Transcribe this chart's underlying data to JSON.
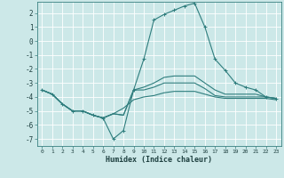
{
  "xlabel": "Humidex (Indice chaleur)",
  "bg_color": "#cce8e8",
  "grid_color": "#ffffff",
  "line_color": "#2e7d7d",
  "xlim": [
    -0.5,
    23.5
  ],
  "ylim": [
    -7.5,
    2.8
  ],
  "yticks": [
    -7,
    -6,
    -5,
    -4,
    -3,
    -2,
    -1,
    0,
    1,
    2
  ],
  "xticks": [
    0,
    1,
    2,
    3,
    4,
    5,
    6,
    7,
    8,
    9,
    10,
    11,
    12,
    13,
    14,
    15,
    16,
    17,
    18,
    19,
    20,
    21,
    22,
    23
  ],
  "line1_x": [
    0,
    1,
    2,
    3,
    4,
    5,
    6,
    7,
    8,
    9,
    10,
    11,
    12,
    13,
    14,
    15,
    16,
    17,
    18,
    19,
    20,
    21,
    22,
    23
  ],
  "line1_y": [
    -3.5,
    -3.8,
    -4.5,
    -5.0,
    -5.0,
    -5.3,
    -5.5,
    -7.0,
    -6.4,
    -3.5,
    -1.3,
    1.5,
    1.9,
    2.2,
    2.5,
    2.7,
    1.0,
    -1.3,
    -2.1,
    -3.0,
    -3.3,
    -3.5,
    -4.0,
    -4.1
  ],
  "line2_x": [
    0,
    1,
    2,
    3,
    4,
    5,
    6,
    7,
    8,
    9,
    10,
    11,
    12,
    13,
    14,
    15,
    16,
    17,
    18,
    19,
    20,
    21,
    22,
    23
  ],
  "line2_y": [
    -3.5,
    -3.8,
    -4.5,
    -5.0,
    -5.0,
    -5.3,
    -5.5,
    -5.2,
    -5.3,
    -3.5,
    -3.3,
    -3.0,
    -2.6,
    -2.5,
    -2.5,
    -2.5,
    -3.0,
    -3.5,
    -3.8,
    -3.8,
    -3.8,
    -3.8,
    -4.0,
    -4.1
  ],
  "line3_x": [
    0,
    1,
    2,
    3,
    4,
    5,
    6,
    7,
    8,
    9,
    10,
    11,
    12,
    13,
    14,
    15,
    16,
    17,
    18,
    19,
    20,
    21,
    22,
    23
  ],
  "line3_y": [
    -3.5,
    -3.8,
    -4.5,
    -5.0,
    -5.0,
    -5.3,
    -5.5,
    -5.2,
    -5.3,
    -3.5,
    -3.5,
    -3.3,
    -3.0,
    -3.0,
    -3.0,
    -3.0,
    -3.4,
    -3.9,
    -4.0,
    -4.0,
    -4.0,
    -4.0,
    -4.0,
    -4.1
  ],
  "line4_x": [
    0,
    1,
    2,
    3,
    4,
    5,
    6,
    7,
    8,
    9,
    10,
    11,
    12,
    13,
    14,
    15,
    16,
    17,
    18,
    19,
    20,
    21,
    22,
    23
  ],
  "line4_y": [
    -3.5,
    -3.8,
    -4.5,
    -5.0,
    -5.0,
    -5.3,
    -5.5,
    -5.2,
    -4.8,
    -4.2,
    -4.0,
    -3.9,
    -3.7,
    -3.6,
    -3.6,
    -3.6,
    -3.8,
    -4.0,
    -4.1,
    -4.1,
    -4.1,
    -4.1,
    -4.1,
    -4.2
  ]
}
